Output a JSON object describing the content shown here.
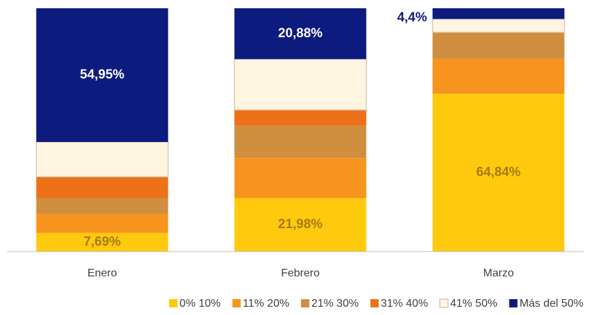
{
  "chart_data": {
    "type": "stacked_bar",
    "categories": [
      "Enero",
      "Febrero",
      "Marzo"
    ],
    "ylim": [
      0,
      100
    ],
    "series": [
      {
        "name": "0% 10%",
        "color": "#FFC90E",
        "values": [
          7.69,
          21.98,
          64.84
        ],
        "value_labels": [
          "7,69%",
          "21,98%",
          "64,84%"
        ]
      },
      {
        "name": "11% 20%",
        "color": "#F7941D",
        "values": [
          7.69,
          16.48,
          14.29
        ]
      },
      {
        "name": "21% 30%",
        "color": "#D08E3F",
        "values": [
          6.59,
          13.19,
          10.99
        ]
      },
      {
        "name": "31% 40%",
        "color": "#EC7118",
        "values": [
          8.79,
          6.59,
          0
        ]
      },
      {
        "name": "41% 50%",
        "color": "#FFF5E1",
        "values": [
          14.29,
          20.88,
          5.49
        ]
      },
      {
        "name": "Más del 50%",
        "color": "#0D1A7E",
        "values": [
          54.95,
          20.88,
          4.4
        ],
        "value_labels": [
          "54,95%",
          "20,88%",
          "4,4%"
        ]
      }
    ]
  }
}
